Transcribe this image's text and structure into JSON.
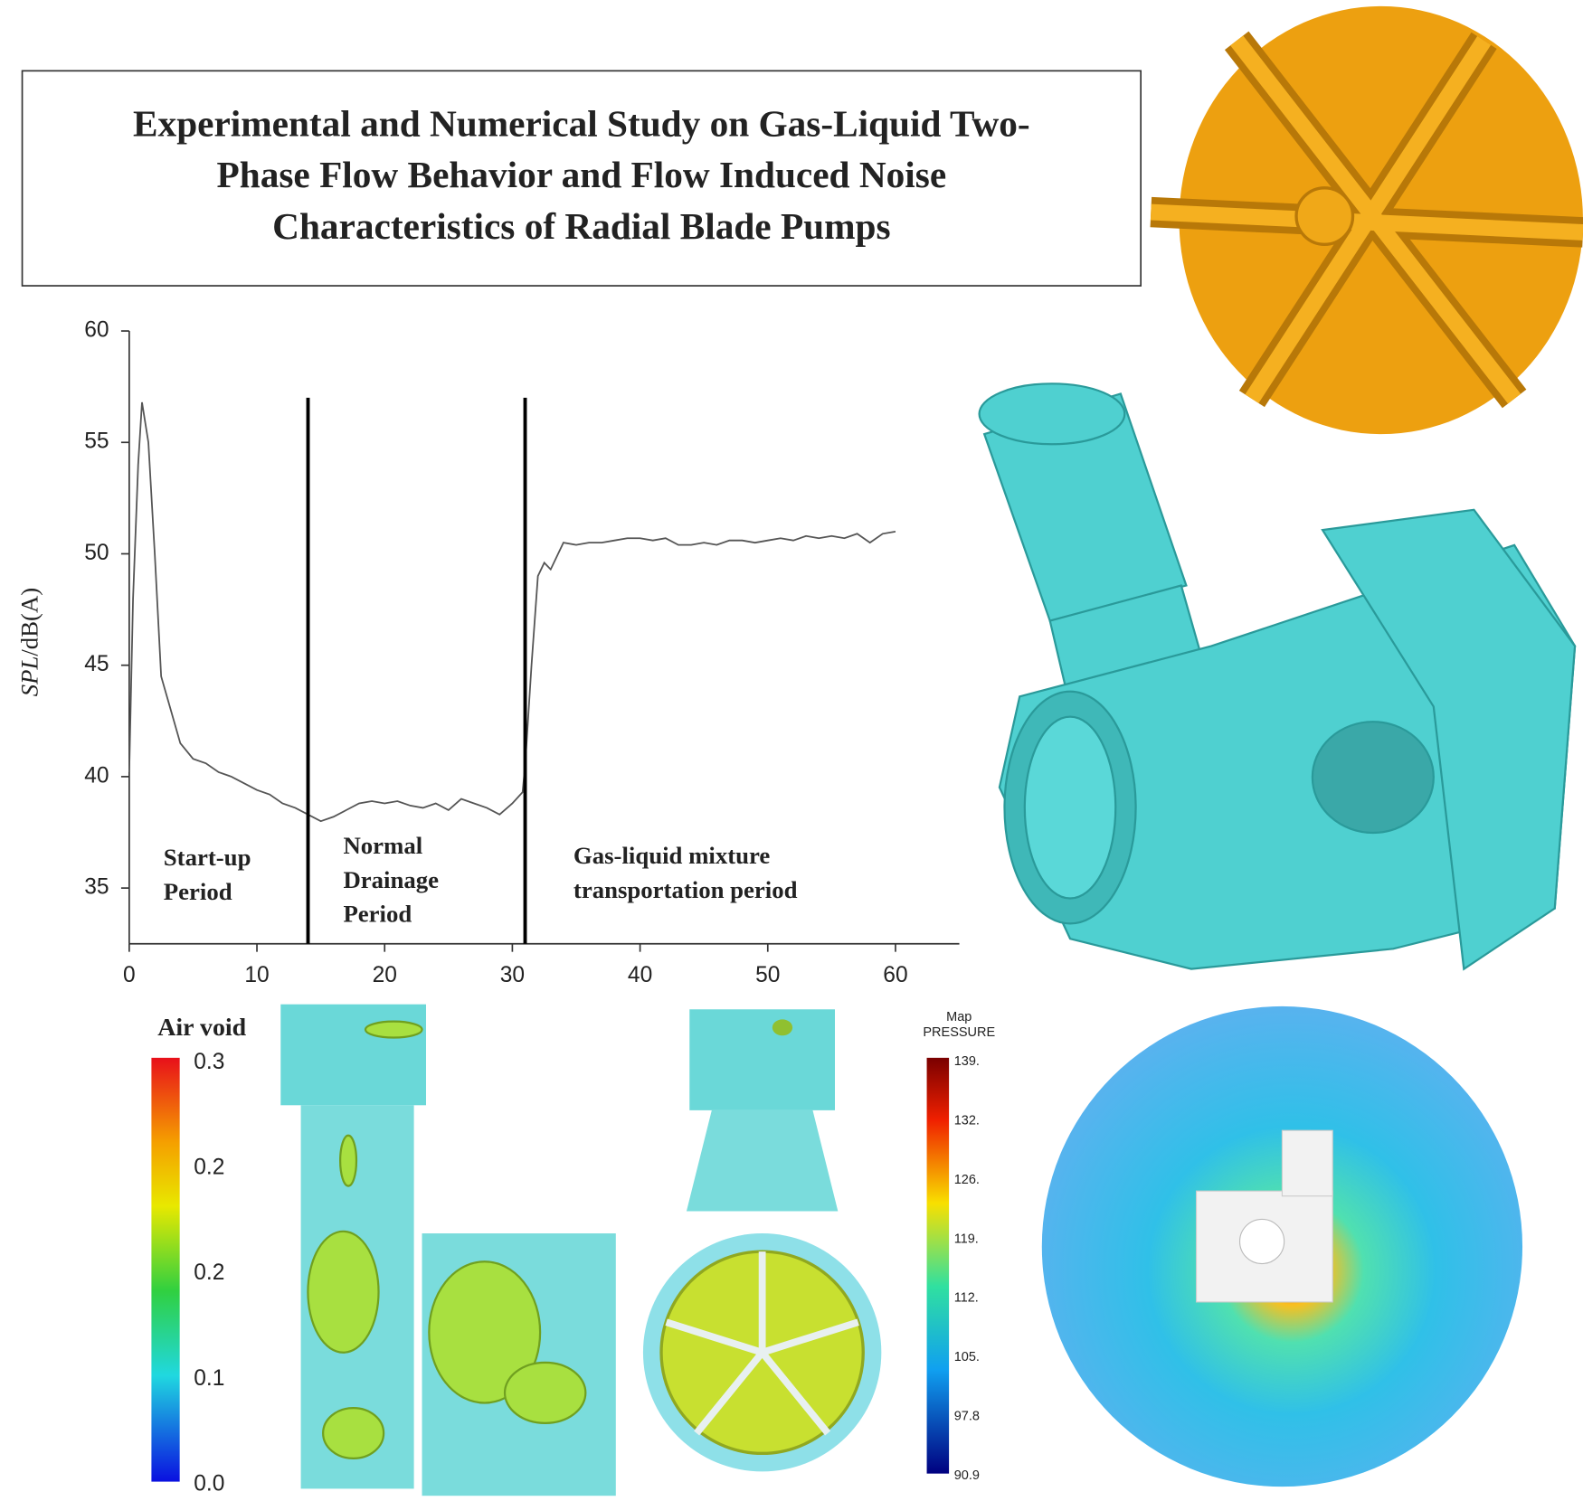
{
  "header": {
    "title_lines": [
      "Experimental and Numerical Study on Gas-Liquid Two-",
      "Phase Flow Behavior and Flow Induced Noise",
      "Characteristics of Radial Blade Pumps"
    ]
  },
  "chart_data": {
    "type": "line",
    "ylabel_var": "SPL",
    "ylabel_unit": "/dB(A)",
    "x": [
      0,
      0.3,
      0.7,
      1,
      1.5,
      2,
      2.5,
      3,
      4,
      5,
      6,
      7,
      8,
      9,
      10,
      11,
      12,
      13,
      14,
      15,
      16,
      17,
      18,
      19,
      20,
      21,
      22,
      23,
      24,
      25,
      26,
      27,
      28,
      29,
      30,
      30.8,
      31,
      31.5,
      32,
      32.5,
      33,
      34,
      35,
      36,
      37,
      38,
      39,
      40,
      41,
      42,
      43,
      44,
      45,
      46,
      47,
      48,
      49,
      50,
      51,
      52,
      53,
      54,
      55,
      56,
      57,
      58,
      59,
      60
    ],
    "values": [
      40.2,
      48,
      54,
      56.8,
      55,
      50,
      44.5,
      43.5,
      41.5,
      40.8,
      40.6,
      40.2,
      40,
      39.7,
      39.4,
      39.2,
      38.8,
      38.6,
      38.3,
      38,
      38.2,
      38.5,
      38.8,
      38.9,
      38.8,
      38.9,
      38.7,
      38.6,
      38.8,
      38.5,
      39,
      38.8,
      38.6,
      38.3,
      38.8,
      39.3,
      40.5,
      45,
      49,
      49.6,
      49.3,
      50.5,
      50.4,
      50.5,
      50.5,
      50.6,
      50.7,
      50.7,
      50.6,
      50.7,
      50.4,
      50.4,
      50.5,
      50.4,
      50.6,
      50.6,
      50.5,
      50.6,
      50.7,
      50.6,
      50.8,
      50.7,
      50.8,
      50.7,
      50.9,
      50.5,
      50.9,
      51.0
    ],
    "color": "#555555",
    "xlim": [
      0,
      65
    ],
    "ylim": [
      32.5,
      60
    ],
    "xticks": [
      0,
      10,
      20,
      30,
      40,
      50,
      60
    ],
    "yticks": [
      35,
      40,
      45,
      50,
      55,
      60
    ],
    "period_lines": [
      14,
      31
    ],
    "period_labels": [
      [
        "Start-up",
        "Period"
      ],
      [
        "Normal",
        "Drainage",
        "Period"
      ],
      [
        "Gas-liquid mixture",
        "transportation period"
      ]
    ]
  },
  "air_void_legend": {
    "title": "Air void",
    "labels": [
      "0.3",
      "0.2",
      "0.2",
      "0.1",
      "0.0"
    ]
  },
  "pressure_legend": {
    "title_lines": [
      "Map",
      "PRESSURE"
    ],
    "labels": [
      "139.",
      "132.",
      "126.",
      "119.",
      "112.",
      "105.",
      "97.8",
      "90.9"
    ]
  }
}
